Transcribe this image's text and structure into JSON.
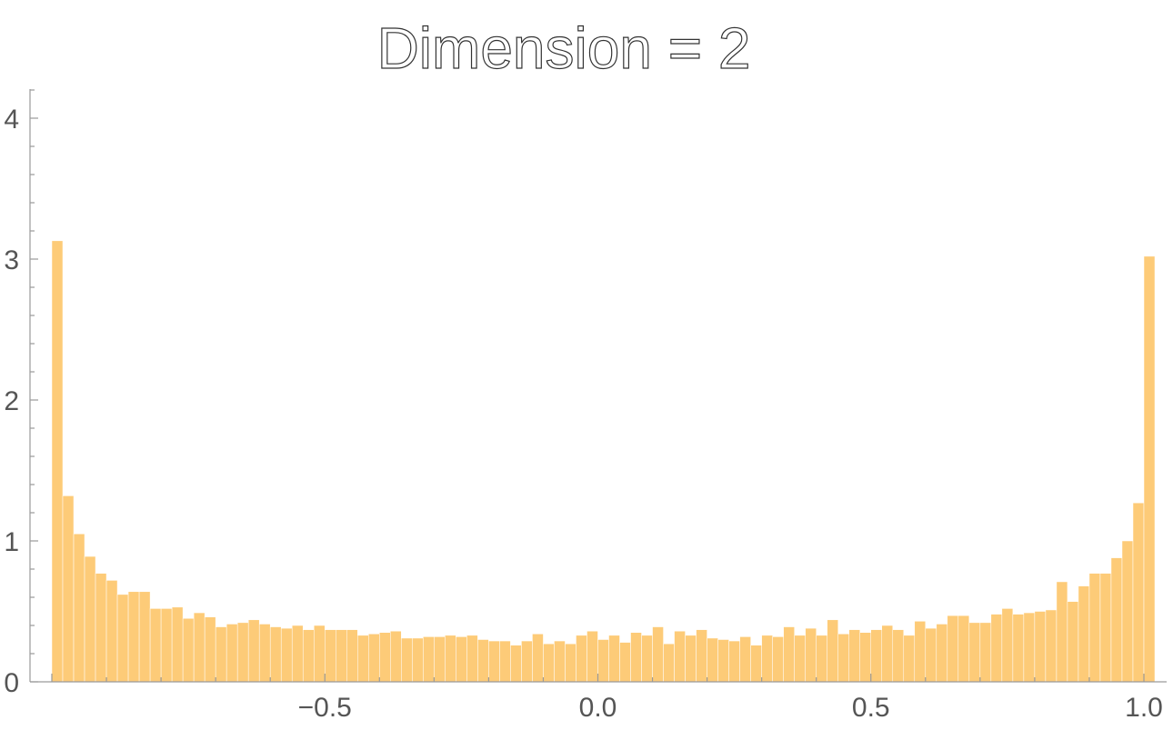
{
  "chart_data": {
    "type": "bar",
    "title": "Dimension = 2",
    "xlim": [
      -1.0,
      1.0
    ],
    "ylim": [
      0,
      4.2
    ],
    "x_ticks": [
      {
        "value": -0.5,
        "label": "−0.5"
      },
      {
        "value": 0.0,
        "label": "0.0"
      },
      {
        "value": 0.5,
        "label": "0.5"
      },
      {
        "value": 1.0,
        "label": "1.0"
      }
    ],
    "y_ticks": [
      {
        "value": 0,
        "label": "0"
      },
      {
        "value": 1,
        "label": "1"
      },
      {
        "value": 2,
        "label": "2"
      },
      {
        "value": 3,
        "label": "3"
      },
      {
        "value": 4,
        "label": "4"
      }
    ],
    "y_minor_step": 0.2,
    "x_minor_step": 0.1,
    "bin_start": -1.0,
    "bin_width": 0.02,
    "bar_color": "#fdcb78",
    "values": [
      3.13,
      1.32,
      1.05,
      0.89,
      0.77,
      0.72,
      0.62,
      0.64,
      0.64,
      0.52,
      0.52,
      0.53,
      0.45,
      0.49,
      0.46,
      0.39,
      0.41,
      0.42,
      0.44,
      0.41,
      0.39,
      0.38,
      0.4,
      0.37,
      0.4,
      0.37,
      0.37,
      0.37,
      0.33,
      0.34,
      0.35,
      0.36,
      0.31,
      0.31,
      0.32,
      0.32,
      0.33,
      0.32,
      0.33,
      0.3,
      0.29,
      0.29,
      0.26,
      0.29,
      0.34,
      0.27,
      0.29,
      0.27,
      0.33,
      0.36,
      0.3,
      0.33,
      0.28,
      0.35,
      0.33,
      0.39,
      0.27,
      0.36,
      0.33,
      0.37,
      0.31,
      0.3,
      0.29,
      0.32,
      0.26,
      0.33,
      0.32,
      0.39,
      0.33,
      0.38,
      0.33,
      0.44,
      0.34,
      0.37,
      0.35,
      0.37,
      0.4,
      0.37,
      0.33,
      0.43,
      0.38,
      0.41,
      0.47,
      0.47,
      0.42,
      0.42,
      0.48,
      0.52,
      0.48,
      0.49,
      0.5,
      0.51,
      0.71,
      0.57,
      0.68,
      0.77,
      0.77,
      0.88,
      1.0,
      1.27,
      3.02
    ]
  }
}
